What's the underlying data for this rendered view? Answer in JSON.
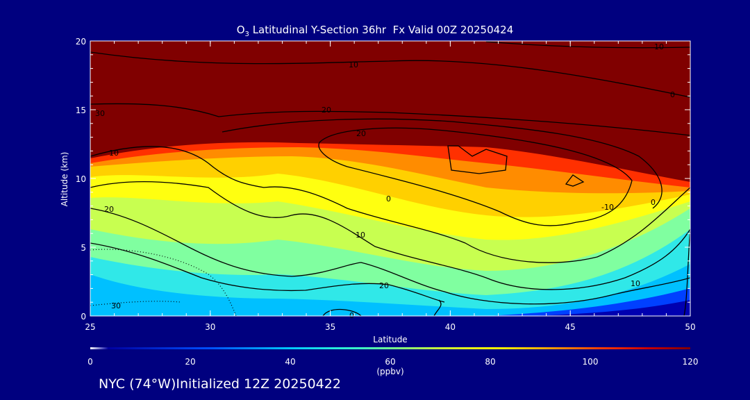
{
  "chart_data": {
    "type": "heatmap",
    "title_prefix": "O",
    "title_sub": "3",
    "title_rest": " Latitudinal Y-Section 36hr  Fx Valid 00Z 20250424",
    "xlabel": "Latitude",
    "ylabel": "Altitude (km)",
    "xlim": [
      25,
      50
    ],
    "ylim": [
      0,
      20
    ],
    "xticks": [
      "25",
      "30",
      "35",
      "40",
      "45",
      "50"
    ],
    "yticks": [
      "0",
      "5",
      "10",
      "15",
      "20"
    ],
    "colorbar": {
      "ticks": [
        "0",
        "20",
        "40",
        "60",
        "80",
        "100",
        "120"
      ],
      "range": [
        0,
        120
      ],
      "unit": "(ppbv)"
    },
    "contour_labels": [
      "10",
      "20",
      "30",
      "20",
      "10",
      "0",
      "-10",
      "0",
      "10",
      "20",
      "30",
      "20",
      "10",
      "0",
      "10",
      "0"
    ],
    "footer": "NYC (74°W)Initialized 12Z 20250422"
  }
}
